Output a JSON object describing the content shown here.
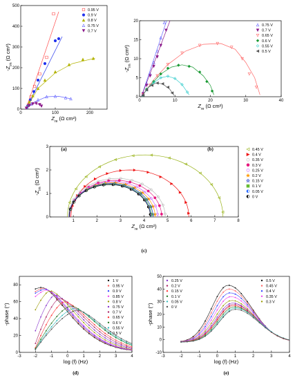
{
  "chart_data": [
    {
      "id": "a",
      "type": "scatter",
      "panel_label": "(a)",
      "xlabel": "Z_re (Ω cm²)",
      "ylabel": "-Z_im (Ω cm²)",
      "xlim": [
        0,
        250
      ],
      "ylim": [
        0,
        500
      ],
      "xticks": [
        0,
        100,
        200
      ],
      "yticks": [
        0,
        100,
        200,
        300,
        400,
        500
      ],
      "legend_position": "top-right",
      "series": [
        {
          "name": "0.95 V",
          "color": "#ff4d4d",
          "marker": "square-open",
          "x": [
            22,
            30,
            40,
            55,
            75,
            95
          ],
          "y": [
            20,
            60,
            110,
            170,
            250,
            460
          ],
          "fit": {
            "x": [
              15,
              110
            ],
            "y": [
              0,
              470
            ]
          }
        },
        {
          "name": "0.9 V",
          "color": "#2233ee",
          "marker": "circle",
          "x": [
            20,
            28,
            38,
            50,
            70,
            100,
            110
          ],
          "y": [
            15,
            45,
            85,
            140,
            220,
            330,
            340
          ],
          "fit": {
            "x": [
              15,
              120
            ],
            "y": [
              0,
              350
            ]
          }
        },
        {
          "name": "0.8 V",
          "color": "#b3b300",
          "marker": "triangle",
          "x": [
            18,
            25,
            35,
            50,
            70,
            100,
            140,
            180,
            210
          ],
          "y": [
            10,
            35,
            65,
            100,
            140,
            180,
            215,
            240,
            245
          ],
          "fit": {
            "x": [
              15,
              50,
              100,
              150,
              200,
              215
            ],
            "y": [
              0,
              100,
              175,
              220,
              240,
              245
            ]
          }
        },
        {
          "name": "0.75 V",
          "color": "#6666ff",
          "marker": "triangle-open",
          "x": [
            18,
            30,
            50,
            75,
            100,
            130,
            145
          ],
          "y": [
            8,
            25,
            45,
            60,
            62,
            55,
            50
          ],
          "fit": {
            "x": [
              15,
              40,
              75,
              110,
              145
            ],
            "y": [
              0,
              35,
              60,
              62,
              50
            ]
          }
        },
        {
          "name": "0.7 V",
          "color": "#8b1a8b",
          "marker": "triangle-down",
          "x": [
            16,
            25,
            35,
            45,
            55,
            60
          ],
          "y": [
            5,
            18,
            26,
            28,
            22,
            15
          ],
          "fit": {
            "x": [
              15,
              25,
              40,
              55,
              62
            ],
            "y": [
              0,
              18,
              28,
              22,
              10
            ]
          }
        }
      ]
    },
    {
      "id": "b",
      "type": "scatter",
      "panel_label": "(b)",
      "xlabel": "Z_re (Ω cm²)",
      "ylabel": "-Z_im (Ω cm²)",
      "xlim": [
        0,
        40
      ],
      "ylim": [
        0,
        20
      ],
      "xticks": [
        0,
        10,
        20,
        30,
        40
      ],
      "yticks": [
        0,
        5,
        10,
        15,
        20
      ],
      "legend_position": "top-right",
      "series": [
        {
          "name": "0.75 V",
          "color": "#6666ff",
          "marker": "triangle-open",
          "x": [
            1,
            2,
            3,
            4,
            5,
            6,
            7
          ],
          "y": [
            1,
            3.5,
            6,
            9,
            12,
            15.5,
            19.5
          ],
          "fit": {
            "x": [
              0.5,
              8
            ],
            "y": [
              0,
              21
            ]
          }
        },
        {
          "name": "0.7 V",
          "color": "#8b1a8b",
          "marker": "triangle-down",
          "x": [
            1,
            2,
            3,
            4,
            5,
            6,
            7.5
          ],
          "y": [
            0.8,
            3,
            5.5,
            8,
            10.5,
            13.5,
            17.5
          ],
          "fit": {
            "x": [
              0.5,
              9
            ],
            "y": [
              0,
              21
            ]
          }
        },
        {
          "name": "0.65 V",
          "color": "#ff6666",
          "marker": "triangle-down-open",
          "x": [
            1,
            3,
            5,
            8,
            12,
            17,
            22,
            26,
            29,
            31,
            33
          ],
          "y": [
            0.5,
            3,
            5.5,
            8.5,
            11.5,
            13.5,
            14,
            13,
            10,
            6,
            2.5
          ],
          "fit": {
            "x": [
              0.5,
              4,
              8,
              13,
              18,
              23,
              27,
              30,
              32.5,
              34
            ],
            "y": [
              0,
              4.5,
              8.5,
              12,
              13.8,
              14,
              12.5,
              9,
              5,
              0.5
            ]
          }
        },
        {
          "name": "0.6 V",
          "color": "#1a9933",
          "marker": "diamond",
          "x": [
            1,
            2,
            4,
            6,
            8,
            11,
            14,
            17,
            19,
            20.5
          ],
          "y": [
            0.3,
            2,
            4,
            6,
            7.5,
            8.3,
            8,
            6.5,
            4,
            1.5
          ],
          "fit": {
            "x": [
              0.5,
              3,
              6,
              9,
              12,
              15,
              18,
              20,
              21
            ],
            "y": [
              0,
              3,
              6,
              7.8,
              8.4,
              7.8,
              5.5,
              3,
              0.5
            ]
          }
        },
        {
          "name": "0.55 V",
          "color": "#33cccc",
          "marker": "diamond-open",
          "x": [
            1,
            2,
            4,
            6,
            8,
            10,
            12,
            13.5
          ],
          "y": [
            0.3,
            1.8,
            3.8,
            5,
            5.4,
            4.8,
            3.2,
            1.2
          ],
          "fit": {
            "x": [
              0.5,
              3,
              6,
              8,
              10,
              12,
              14
            ],
            "y": [
              0,
              3,
              5,
              5.4,
              4.8,
              3.2,
              0.5
            ]
          }
        },
        {
          "name": "0.5 V",
          "color": "#555555",
          "marker": "triangle-left",
          "x": [
            1,
            2,
            3.5,
            5,
            6.5,
            8,
            9.2
          ],
          "y": [
            0.3,
            1.8,
            3,
            3.6,
            3.4,
            2.5,
            1
          ],
          "fit": {
            "x": [
              0.5,
              2.5,
              4.5,
              6.5,
              8.5,
              9.8
            ],
            "y": [
              0,
              2.5,
              3.6,
              3.4,
              2,
              0.3
            ]
          }
        }
      ]
    },
    {
      "id": "c",
      "type": "scatter",
      "panel_label": "(c)",
      "xlabel": "Z_re (Ω cm²)",
      "ylabel": "-Z_im (Ω cm²)",
      "xlim": [
        0,
        8
      ],
      "ylim": [
        0,
        3
      ],
      "xticks": [
        1,
        2,
        3,
        4,
        5,
        6,
        7,
        8
      ],
      "yticks": [
        0,
        1,
        2,
        3
      ],
      "legend_position": "right",
      "series": [
        {
          "name": "0.45 V",
          "color": "#99b31a",
          "marker": "triangle-left-open",
          "center": 4.05,
          "radius": 3.3
        },
        {
          "name": "0.4 V",
          "color": "#ee1111",
          "marker": "triangle-right",
          "center": 3.4,
          "radius": 2.5
        },
        {
          "name": "0.35 V",
          "color": "#bbbbbb",
          "marker": "circle-open",
          "center": 2.85,
          "radius": 2.05
        },
        {
          "name": "0.3 V",
          "color": "#e6197f",
          "marker": "circle",
          "center": 2.8,
          "radius": 1.95
        },
        {
          "name": "0.25 V",
          "color": "#cc66ff",
          "marker": "circle-open",
          "center": 2.7,
          "radius": 1.88
        },
        {
          "name": "0.2 V",
          "color": "#ff9900",
          "marker": "star",
          "center": 2.65,
          "radius": 1.82
        },
        {
          "name": "0.15 V",
          "color": "#1a33cc",
          "marker": "star-open",
          "center": 2.6,
          "radius": 1.78
        },
        {
          "name": "0.1 V",
          "color": "#66bb33",
          "marker": "square",
          "center": 2.58,
          "radius": 1.75
        },
        {
          "name": "0.05 V",
          "color": "#2266ff",
          "marker": "half-circle",
          "center": 2.56,
          "radius": 1.73
        },
        {
          "name": "0 V",
          "color": "#111111",
          "marker": "half-circle-dark",
          "center": 2.55,
          "radius": 1.72
        }
      ]
    },
    {
      "id": "d",
      "type": "line",
      "panel_label": "(d)",
      "xlabel": "log (f) (Hz)",
      "ylabel": "-phase (°)",
      "xlim": [
        -3,
        4
      ],
      "ylim": [
        0,
        90
      ],
      "xticks": [
        -3,
        -2,
        -1,
        0,
        1,
        2,
        3,
        4
      ],
      "yticks": [
        0,
        20,
        40,
        60,
        80
      ],
      "legend_position": "right",
      "series": [
        {
          "name": "1 V",
          "color": "#111111",
          "peak": 77,
          "peakx": -1.6,
          "lowstart": 75
        },
        {
          "name": "0.95 V",
          "color": "#ff6666",
          "peak": 76,
          "peakx": -1.5,
          "lowstart": 72
        },
        {
          "name": "0.9 V",
          "color": "#3344ff",
          "peak": 75,
          "peakx": -1.4,
          "lowstart": 70
        },
        {
          "name": "0.85 V",
          "color": "#ee44ee",
          "peak": 74,
          "peakx": -1.3,
          "lowstart": 66
        },
        {
          "name": "0.8 V",
          "color": "#999900",
          "peak": 73,
          "peakx": -1.1,
          "lowstart": 50
        },
        {
          "name": "0.75 V",
          "color": "#8833cc",
          "peak": 68,
          "peakx": -0.8,
          "lowstart": 25
        },
        {
          "name": "0.7 V",
          "color": "#aa2266",
          "peak": 64,
          "peakx": -0.5,
          "lowstart": 10
        },
        {
          "name": "0.65 V",
          "color": "#ff3333",
          "peak": 60,
          "peakx": -0.2,
          "lowstart": 5
        },
        {
          "name": "0.6 V",
          "color": "#227722",
          "peak": 55,
          "peakx": 0.2,
          "lowstart": 4
        },
        {
          "name": "0.55 V",
          "color": "#33bbbb",
          "peak": 52,
          "peakx": 0.4,
          "lowstart": 3
        },
        {
          "name": "0.5 V",
          "color": "#555555",
          "peak": 50,
          "peakx": 0.6,
          "lowstart": 3
        }
      ]
    },
    {
      "id": "e",
      "type": "line",
      "panel_label": "(e)",
      "xlabel": "log (f) (Hz)",
      "ylabel": "-phase (°)",
      "xlim": [
        -3,
        4
      ],
      "ylim": [
        -10,
        50
      ],
      "xticks": [
        -3,
        -2,
        -1,
        0,
        1,
        2,
        3,
        4
      ],
      "yticks": [
        -10,
        0,
        10,
        20,
        30,
        40,
        50
      ],
      "legend_position": "top",
      "series": [
        {
          "name": "0.5 V",
          "color": "#111111",
          "peak": 43,
          "peakx": 0.6
        },
        {
          "name": "0.45 V",
          "color": "#ff6666",
          "peak": 40,
          "peakx": 0.65
        },
        {
          "name": "0.4 V",
          "color": "#3344ff",
          "peak": 37,
          "peakx": 0.7
        },
        {
          "name": "0.35 V",
          "color": "#ee44ee",
          "peak": 34,
          "peakx": 0.75
        },
        {
          "name": "0.3 V",
          "color": "#999900",
          "peak": 31,
          "peakx": 0.8
        },
        {
          "name": "0.25 V",
          "color": "#8833cc",
          "peak": 29,
          "peakx": 0.85
        },
        {
          "name": "0.2 V",
          "color": "#aa2266",
          "peak": 28,
          "peakx": 0.9
        },
        {
          "name": "0.15 V",
          "color": "#ff3333",
          "peak": 27,
          "peakx": 0.9
        },
        {
          "name": "0.1 V",
          "color": "#227722",
          "peak": 26,
          "peakx": 0.95
        },
        {
          "name": "0.05 V",
          "color": "#33bbbb",
          "peak": 25,
          "peakx": 1.0
        },
        {
          "name": "0 V",
          "color": "#555555",
          "peak": 24,
          "peakx": 1.0
        }
      ]
    }
  ]
}
